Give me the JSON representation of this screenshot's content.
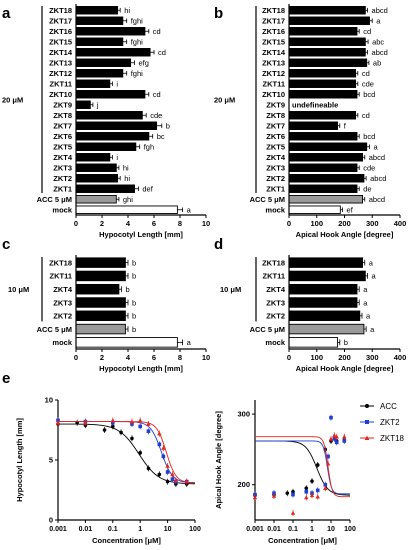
{
  "panels": {
    "a": {
      "letter": "a"
    },
    "b": {
      "letter": "b"
    },
    "c": {
      "letter": "c"
    },
    "d": {
      "letter": "d"
    },
    "e": {
      "letter": "e"
    }
  },
  "group_labels": {
    "top": "20 μM",
    "mid": "10 μM"
  },
  "chart_data": [
    {
      "id": "a",
      "type": "bar",
      "orientation": "horizontal",
      "xlabel": "Hypocotyl Length [mm]",
      "xlim": [
        0,
        10
      ],
      "xticks": [
        0,
        2,
        4,
        6,
        8,
        10
      ],
      "group_label": "20 μM",
      "categories": [
        "ZKT18",
        "ZKT17",
        "ZKT16",
        "ZKT15",
        "ZKT14",
        "ZKT13",
        "ZKT12",
        "ZKT11",
        "ZKT10",
        "ZKT9",
        "ZKT8",
        "ZKT7",
        "ZKT6",
        "ZKT5",
        "ZKT4",
        "ZKT3",
        "ZKT2",
        "ZKT1",
        "ACC 5 μM",
        "mock"
      ],
      "values": [
        3.2,
        3.6,
        5.3,
        3.6,
        5.7,
        4.2,
        3.6,
        2.6,
        5.3,
        1.1,
        5.1,
        6.2,
        5.6,
        4.6,
        2.6,
        3.1,
        3.2,
        4.5,
        3.1,
        7.8
      ],
      "errors": [
        0.2,
        0.3,
        0.3,
        0.3,
        0.3,
        0.3,
        0.3,
        0.2,
        0.3,
        0.2,
        0.3,
        0.4,
        0.3,
        0.3,
        0.2,
        0.2,
        0.2,
        0.3,
        0.2,
        0.4
      ],
      "labels": [
        "hi",
        "fghi",
        "cd",
        "fghi",
        "cd",
        "efg",
        "fghi",
        "i",
        "cd",
        "j",
        "cde",
        "b",
        "bc",
        "fgh",
        "i",
        "hi",
        "hi",
        "def",
        "ghi",
        "a"
      ],
      "fill": [
        "black",
        "black",
        "black",
        "black",
        "black",
        "black",
        "black",
        "black",
        "black",
        "black",
        "black",
        "black",
        "black",
        "black",
        "black",
        "black",
        "black",
        "black",
        "gray",
        "white"
      ]
    },
    {
      "id": "b",
      "type": "bar",
      "orientation": "horizontal",
      "xlabel": "Apical Hook Angle [degree]",
      "xlim": [
        0,
        400
      ],
      "xticks": [
        0,
        100,
        200,
        300,
        400
      ],
      "group_label": "20 μM",
      "categories": [
        "ZKT18",
        "ZKT17",
        "ZKT16",
        "ZKT15",
        "ZKT14",
        "ZKT13",
        "ZKT12",
        "ZKT11",
        "ZKT10",
        "ZKT9",
        "ZKT8",
        "ZKT7",
        "ZKT6",
        "ZKT5",
        "ZKT4",
        "ZKT3",
        "ZKT2",
        "ZKT1",
        "ACC 5 μM",
        "mock"
      ],
      "values": [
        275,
        290,
        245,
        275,
        275,
        280,
        240,
        240,
        245,
        null,
        240,
        175,
        245,
        280,
        265,
        245,
        270,
        245,
        265,
        185
      ],
      "errors": [
        8,
        10,
        8,
        10,
        8,
        8,
        8,
        8,
        8,
        null,
        8,
        8,
        8,
        10,
        8,
        8,
        8,
        8,
        8,
        8
      ],
      "labels": [
        "abcd",
        "a",
        "cd",
        "abc",
        "abcd",
        "ab",
        "cd",
        "cde",
        "bcd",
        "undefineable",
        "cd",
        "f",
        "bcd",
        "a",
        "abcd",
        "cde",
        "abcd",
        "de",
        "abcd",
        "ef"
      ],
      "fill": [
        "black",
        "black",
        "black",
        "black",
        "black",
        "black",
        "black",
        "black",
        "black",
        "black",
        "black",
        "black",
        "black",
        "black",
        "black",
        "black",
        "black",
        "black",
        "gray",
        "white"
      ]
    },
    {
      "id": "c",
      "type": "bar",
      "orientation": "horizontal",
      "xlabel": "Hypocotyl Length [mm]",
      "xlim": [
        0,
        10
      ],
      "xticks": [
        0,
        2,
        4,
        6,
        8,
        10
      ],
      "group_label": "10 μM",
      "categories": [
        "ZKT18",
        "ZKT11",
        "ZKT4",
        "ZKT3",
        "ZKT2",
        "ACC 5 μM",
        "mock"
      ],
      "values": [
        3.8,
        3.8,
        3.3,
        3.8,
        3.8,
        3.8,
        7.8
      ],
      "errors": [
        0.2,
        0.2,
        0.2,
        0.2,
        0.2,
        0.2,
        0.4
      ],
      "labels": [
        "b",
        "b",
        "b",
        "b",
        "b",
        "b",
        "a"
      ],
      "fill": [
        "black",
        "black",
        "black",
        "black",
        "black",
        "gray",
        "white"
      ]
    },
    {
      "id": "d",
      "type": "bar",
      "orientation": "horizontal",
      "xlabel": "Apical Hook Angle [degree]",
      "xlim": [
        0,
        400
      ],
      "xticks": [
        0,
        100,
        200,
        300,
        400
      ],
      "group_label": "10 μM",
      "categories": [
        "ZKT18",
        "ZKT11",
        "ZKT4",
        "ZKT3",
        "ZKT2",
        "ACC 5 μM",
        "mock"
      ],
      "values": [
        265,
        275,
        245,
        245,
        255,
        270,
        175
      ],
      "errors": [
        8,
        8,
        8,
        8,
        8,
        8,
        8
      ],
      "labels": [
        "a",
        "a",
        "a",
        "a",
        "a",
        "a",
        "b"
      ],
      "fill": [
        "black",
        "black",
        "black",
        "black",
        "black",
        "gray",
        "white"
      ]
    },
    {
      "id": "e1",
      "type": "scatter",
      "xlabel": "Concentration [μM]",
      "ylabel": "Hypocotyl Length [mm]",
      "xscale": "log",
      "xlim": [
        0.001,
        100
      ],
      "ylim": [
        0,
        10
      ],
      "xticks": [
        0.001,
        0.01,
        0.1,
        1,
        10,
        100
      ],
      "xtick_labels": [
        "0.001",
        "0.01",
        "0.1",
        "1",
        "10",
        "100"
      ],
      "yticks": [
        0,
        5,
        10
      ],
      "series": [
        {
          "name": "ACC",
          "color": "#000000",
          "marker": "circle",
          "x": [
            0.001,
            0.005,
            0.01,
            0.05,
            0.1,
            0.2,
            0.5,
            1,
            2,
            5,
            10,
            20,
            50
          ],
          "y": [
            8.0,
            8.1,
            7.9,
            7.5,
            7.8,
            7.3,
            6.8,
            5.6,
            4.3,
            3.8,
            3.2,
            3.0,
            3.0
          ],
          "fit_bottom": 3.0,
          "fit_top": 8.0,
          "fit_ec50": 0.9,
          "fit_hill": 1.2
        },
        {
          "name": "ZKT2",
          "color": "#1f3fd4",
          "marker": "square",
          "x": [
            0.001,
            0.01,
            0.1,
            0.5,
            1,
            2,
            5,
            7,
            10,
            15,
            20,
            50
          ],
          "y": [
            8.3,
            8.2,
            8.1,
            8.0,
            7.8,
            7.4,
            6.3,
            5.3,
            4.0,
            3.4,
            3.2,
            3.2
          ],
          "fit_bottom": 3.1,
          "fit_top": 8.2,
          "fit_ec50": 6.0,
          "fit_hill": 2.2
        },
        {
          "name": "ZKT18",
          "color": "#e8231c",
          "marker": "triangle",
          "x": [
            0.001,
            0.01,
            0.1,
            0.5,
            1,
            2,
            5,
            7,
            10,
            15,
            20,
            50
          ],
          "y": [
            8.1,
            8.1,
            8.3,
            8.2,
            8.3,
            8.0,
            7.2,
            6.0,
            4.5,
            3.8,
            3.3,
            3.2
          ],
          "fit_bottom": 3.1,
          "fit_top": 8.2,
          "fit_ec50": 9.0,
          "fit_hill": 2.5
        }
      ]
    },
    {
      "id": "e2",
      "type": "scatter",
      "xlabel": "Concentration [μM]",
      "ylabel": "Apical Hook Angle [degree]",
      "xscale": "log",
      "xlim": [
        0.001,
        100
      ],
      "ylim": [
        150,
        320
      ],
      "xticks": [
        0.001,
        0.01,
        0.1,
        1,
        10,
        100
      ],
      "xtick_labels": [
        "0.001",
        "0.01",
        "0.1",
        "1",
        "10",
        "100"
      ],
      "yticks": [
        200,
        300
      ],
      "series": [
        {
          "name": "ACC",
          "color": "#000000",
          "marker": "circle",
          "x": [
            0.001,
            0.01,
            0.05,
            0.1,
            0.5,
            1,
            2,
            5,
            10,
            20,
            50
          ],
          "y": [
            185,
            186,
            188,
            190,
            195,
            205,
            228,
            250,
            262,
            262,
            263
          ],
          "fit_bottom": 185,
          "fit_top": 262,
          "fit_ec50": 1.8,
          "fit_hill": 1.5
        },
        {
          "name": "ZKT2",
          "color": "#1f3fd4",
          "marker": "square",
          "x": [
            0.001,
            0.01,
            0.1,
            0.5,
            1,
            2,
            5,
            7,
            10,
            15,
            20,
            50
          ],
          "y": [
            186,
            188,
            186,
            190,
            188,
            192,
            200,
            240,
            295,
            265,
            260,
            262
          ],
          "fit_bottom": 187,
          "fit_top": 262,
          "fit_ec50": 6.5,
          "fit_hill": 4.0
        },
        {
          "name": "ZKT18",
          "color": "#e8231c",
          "marker": "triangle",
          "x": [
            0.001,
            0.01,
            0.1,
            0.5,
            1,
            2,
            5,
            7,
            10,
            15,
            20,
            50
          ],
          "y": [
            182,
            184,
            160,
            182,
            185,
            183,
            195,
            230,
            265,
            270,
            268,
            268
          ],
          "fit_bottom": 183,
          "fit_top": 268,
          "fit_ec50": 7.0,
          "fit_hill": 4.0
        }
      ]
    }
  ]
}
